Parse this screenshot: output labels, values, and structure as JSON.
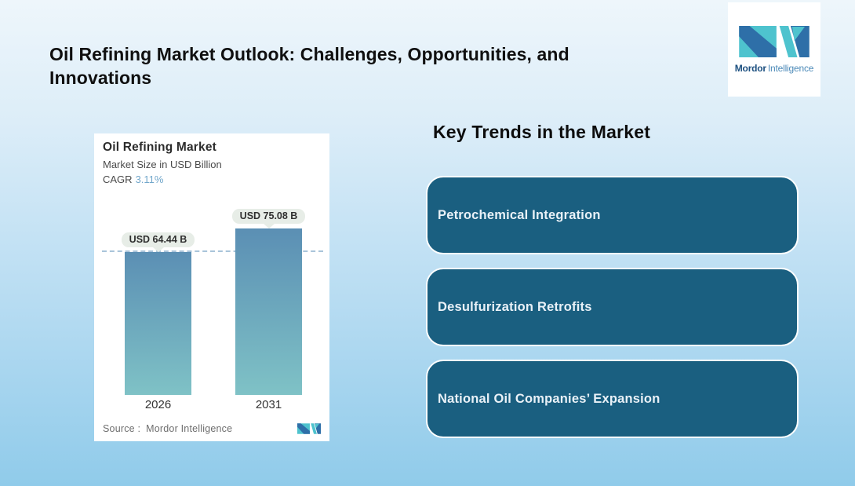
{
  "header": {
    "title": "Oil Refining Market Outlook: Challenges, Opportunities, and Innovations"
  },
  "brand": {
    "name_bold": "Mordor",
    "name_light": "Intelligence"
  },
  "chart_card": {
    "title": "Oil Refining Market",
    "subtitle": "Market Size in USD Billion",
    "cagr_label": "CAGR",
    "cagr_value": "3.11%",
    "source_label": "Source :",
    "source_value": "Mordor Intelligence"
  },
  "chart_data": {
    "type": "bar",
    "title": "Oil Refining Market",
    "subtitle": "Market Size in USD Billion",
    "unit": "USD Billion",
    "cagr_percent": 3.11,
    "categories": [
      "2026",
      "2031"
    ],
    "values": [
      64.44,
      75.08
    ],
    "value_labels": [
      "USD 64.44 B",
      "USD 75.08 B"
    ],
    "ylim": [
      0,
      75.08
    ],
    "baseline_dashed_at": 64.44,
    "grid": "off",
    "legend": "none",
    "bar_gradient": [
      "#5B8FB4",
      "#7FC2C6"
    ]
  },
  "key_trends": {
    "heading": "Key Trends in the Market",
    "items": [
      {
        "label": "Petrochemical Integration"
      },
      {
        "label": "Desulfurization Retrofits"
      },
      {
        "label": "National Oil Companies’ Expansion"
      }
    ]
  },
  "colors": {
    "background_top": "#EEF6FB",
    "background_bottom": "#90CBEA",
    "trend_box": "#1A5F80",
    "trend_box_border": "#FDFEFE",
    "trend_text": "#E9F1F7",
    "logo_teal": "#4EC3CE",
    "logo_blue": "#2E6FA8",
    "cagr_accent": "#72A7CB",
    "dash_line": "#A9C4DA",
    "value_pill_bg": "#E7EDE7"
  }
}
